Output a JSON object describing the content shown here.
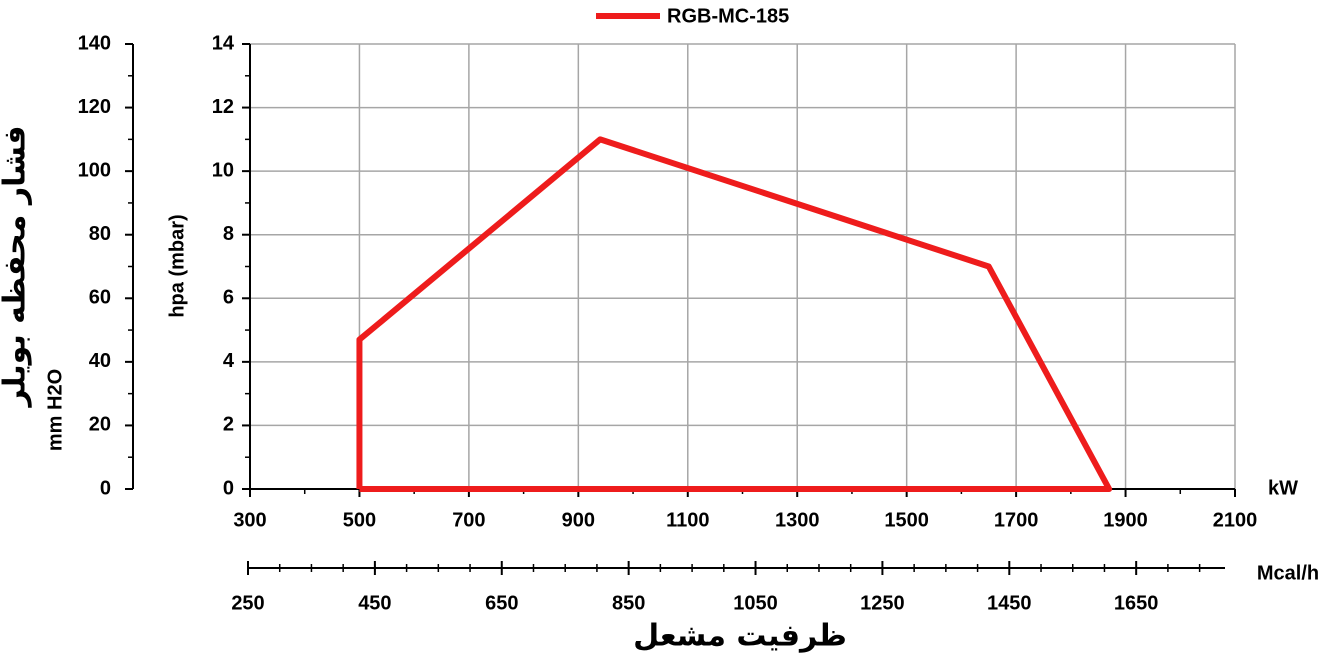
{
  "chart_data": {
    "type": "line",
    "x": [
      500,
      500,
      940,
      1650,
      1870,
      500
    ],
    "series": [
      {
        "name": "RGB-MC-185",
        "color": "#ee1c1c",
        "values": [
          0,
          4.7,
          11,
          7,
          0,
          0
        ]
      }
    ],
    "xlim": [
      300,
      2100
    ],
    "xticks": [
      300,
      500,
      700,
      900,
      1100,
      1300,
      1500,
      1700,
      1900,
      2100
    ],
    "x_unit": "kW",
    "ylim": [
      0,
      14
    ],
    "yticks": [
      0,
      2,
      4,
      6,
      8,
      10,
      12,
      14
    ],
    "y_label": "hpa (mbar)",
    "y2lim": [
      0,
      140
    ],
    "y2ticks": [
      0,
      20,
      40,
      60,
      80,
      100,
      120,
      140
    ],
    "y2_title": "فشار محفظه بویلر",
    "y2_unit": "mm H2O",
    "x2lim": [
      250,
      1790
    ],
    "x2ticks": [
      250,
      450,
      650,
      850,
      1050,
      1250,
      1450,
      1650
    ],
    "x2_unit": "Mcal/h",
    "x_title": "ظرفیت مشعل",
    "grid": true,
    "legend": "top"
  }
}
